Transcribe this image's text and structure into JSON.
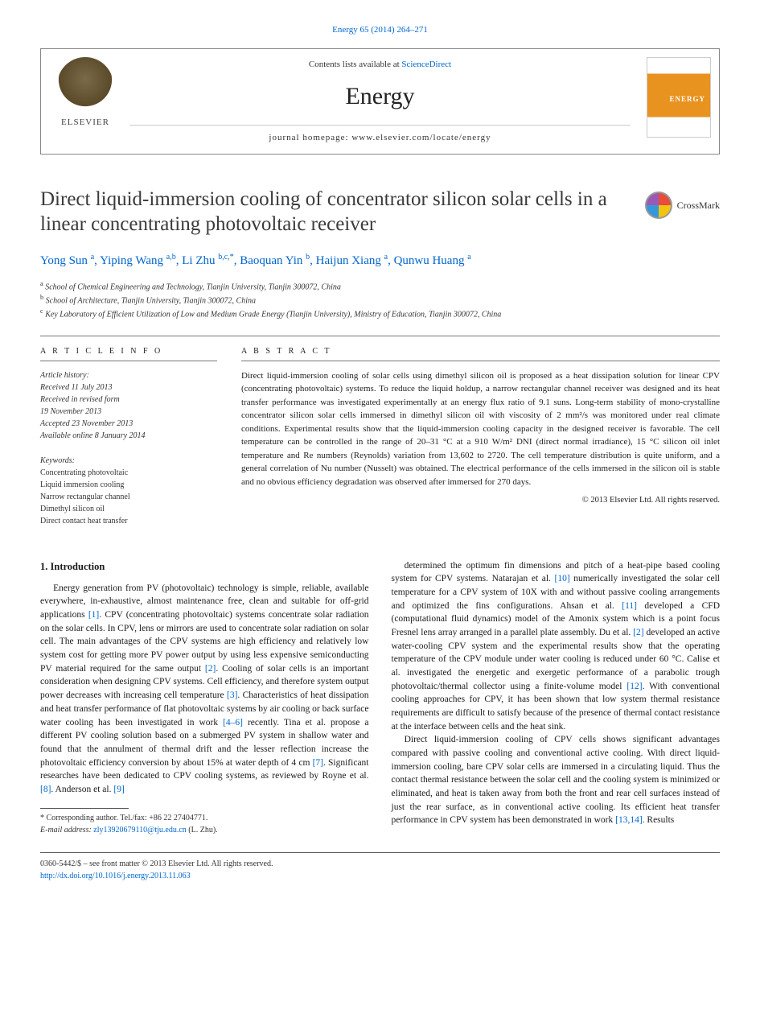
{
  "citation": "Energy 65 (2014) 264–271",
  "header": {
    "contents_prefix": "Contents lists available at ",
    "contents_link": "ScienceDirect",
    "journal_name": "Energy",
    "homepage_prefix": "journal homepage: ",
    "homepage_url": "www.elsevier.com/locate/energy",
    "publisher_label": "ELSEVIER",
    "cover_label": "ENERGY"
  },
  "article": {
    "title": "Direct liquid-immersion cooling of concentrator silicon solar cells in a linear concentrating photovoltaic receiver",
    "crossmark_label": "CrossMark",
    "authors_html": "Yong Sun <sup>a</sup>, Yiping Wang <sup>a,b</sup>, Li Zhu <sup>b,c,*</sup>, Baoquan Yin <sup>b</sup>, Haijun Xiang <sup>a</sup>, Qunwu Huang <sup>a</sup>",
    "affiliations": [
      "a School of Chemical Engineering and Technology, Tianjin University, Tianjin 300072, China",
      "b School of Architecture, Tianjin University, Tianjin 300072, China",
      "c Key Laboratory of Efficient Utilization of Low and Medium Grade Energy (Tianjin University), Ministry of Education, Tianjin 300072, China"
    ]
  },
  "info": {
    "heading": "A R T I C L E   I N F O",
    "history_title": "Article history:",
    "history": [
      "Received 11 July 2013",
      "Received in revised form",
      "19 November 2013",
      "Accepted 23 November 2013",
      "Available online 8 January 2014"
    ],
    "keywords_title": "Keywords:",
    "keywords": [
      "Concentrating photovoltaic",
      "Liquid immersion cooling",
      "Narrow rectangular channel",
      "Dimethyl silicon oil",
      "Direct contact heat transfer"
    ]
  },
  "abstract": {
    "heading": "A B S T R A C T",
    "body": "Direct liquid-immersion cooling of solar cells using dimethyl silicon oil is proposed as a heat dissipation solution for linear CPV (concentrating photovoltaic) systems. To reduce the liquid holdup, a narrow rectangular channel receiver was designed and its heat transfer performance was investigated experimentally at an energy flux ratio of 9.1 suns. Long-term stability of mono-crystalline concentrator silicon solar cells immersed in dimethyl silicon oil with viscosity of 2 mm²/s was monitored under real climate conditions. Experimental results show that the liquid-immersion cooling capacity in the designed receiver is favorable. The cell temperature can be controlled in the range of 20–31 °C at a 910 W/m² DNI (direct normal irradiance), 15 °C silicon oil inlet temperature and Re numbers (Reynolds) variation from 13,602 to 2720. The cell temperature distribution is quite uniform, and a general correlation of Nu number (Nusselt) was obtained. The electrical performance of the cells immersed in the silicon oil is stable and no obvious efficiency degradation was observed after immersed for 270 days.",
    "copyright": "© 2013 Elsevier Ltd. All rights reserved."
  },
  "body": {
    "section_heading": "1. Introduction",
    "col1_p1": "Energy generation from PV (photovoltaic) technology is simple, reliable, available everywhere, in-exhaustive, almost maintenance free, clean and suitable for off-grid applications [1]. CPV (concentrating photovoltaic) systems concentrate solar radiation on the solar cells. In CPV, lens or mirrors are used to concentrate solar radiation on solar cell. The main advantages of the CPV systems are high efficiency and relatively low system cost for getting more PV power output by using less expensive semiconducting PV material required for the same output [2]. Cooling of solar cells is an important consideration when designing CPV systems. Cell efficiency, and therefore system output power decreases with increasing cell temperature [3]. Characteristics of heat dissipation and heat transfer performance of flat photovoltaic systems by air cooling or back surface water cooling has been investigated in work [4–6] recently. Tina et al. propose a different PV cooling solution based on a submerged PV system in shallow water and found that the annulment of thermal drift and the lesser reflection increase the photovoltaic efficiency conversion by about 15% at water depth of 4 cm [7]. Significant researches have been dedicated to CPV cooling systems, as reviewed by Royne et al. [8]. Anderson et al. [9]",
    "col2_p1": "determined the optimum fin dimensions and pitch of a heat-pipe based cooling system for CPV systems. Natarajan et al. [10] numerically investigated the solar cell temperature for a CPV system of 10X with and without passive cooling arrangements and optimized the fins configurations. Ahsan et al. [11] developed a CFD (computational fluid dynamics) model of the Amonix system which is a point focus Fresnel lens array arranged in a parallel plate assembly. Du et al. [2] developed an active water-cooling CPV system and the experimental results show that the operating temperature of the CPV module under water cooling is reduced under 60 °C. Calise et al. investigated the energetic and exergetic performance of a parabolic trough photovoltaic/thermal collector using a finite-volume model [12]. With conventional cooling approaches for CPV, it has been shown that low system thermal resistance requirements are difficult to satisfy because of the presence of thermal contact resistance at the interface between cells and the heat sink.",
    "col2_p2": "Direct liquid-immersion cooling of CPV cells shows significant advantages compared with passive cooling and conventional active cooling. With direct liquid-immersion cooling, bare CPV solar cells are immersed in a circulating liquid. Thus the contact thermal resistance between the solar cell and the cooling system is minimized or eliminated, and heat is taken away from both the front and rear cell surfaces instead of just the rear surface, as in conventional active cooling. Its efficient heat transfer performance in CPV system has been demonstrated in work [13,14]. Results"
  },
  "corresponding": {
    "line1": "* Corresponding author. Tel./fax: +86 22 27404771.",
    "email_label": "E-mail address: ",
    "email": "zly13920679110@tju.edu.cn",
    "email_suffix": " (L. Zhu)."
  },
  "footer": {
    "line1": "0360-5442/$ – see front matter © 2013 Elsevier Ltd. All rights reserved.",
    "doi": "http://dx.doi.org/10.1016/j.energy.2013.11.063"
  },
  "colors": {
    "link": "#0066cc",
    "text": "#1a1a1a",
    "rule": "#777777"
  }
}
